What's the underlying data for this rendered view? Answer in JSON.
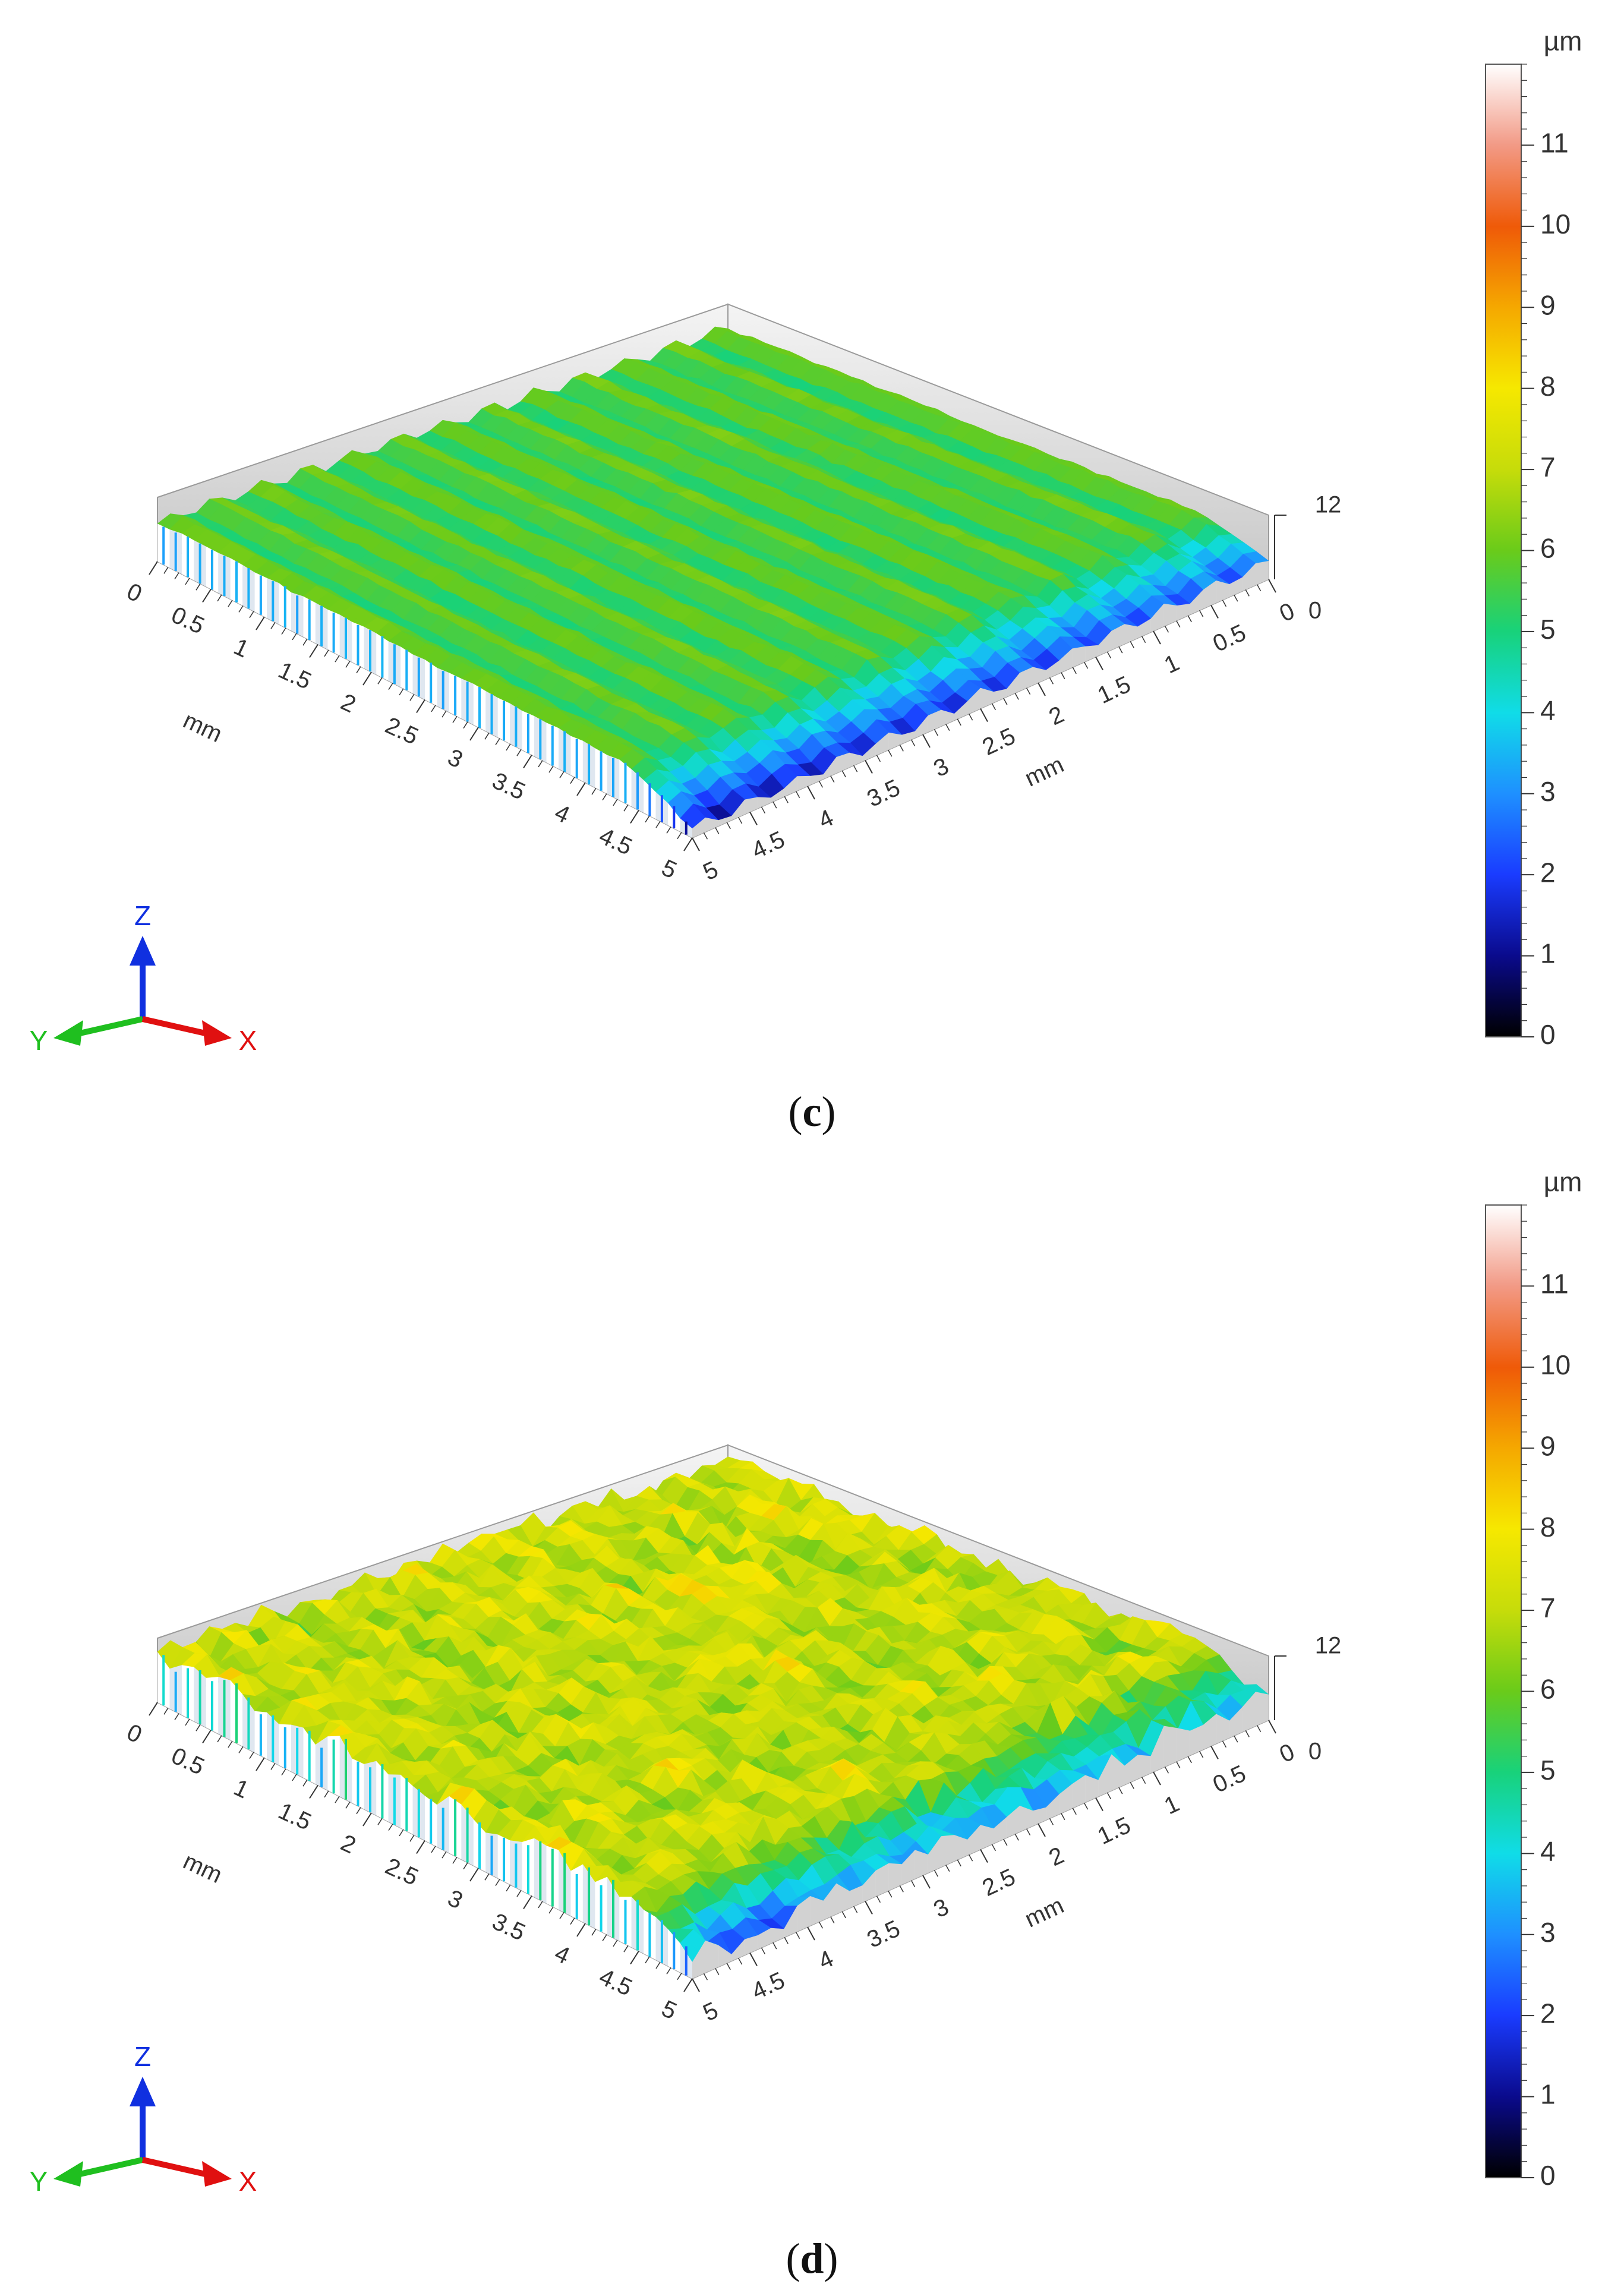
{
  "figure": {
    "panels": [
      {
        "id": "c",
        "caption_open": "(",
        "caption_letter": "c",
        "caption_close": ")"
      },
      {
        "id": "d",
        "caption_open": "(",
        "caption_letter": "d",
        "caption_close": ")"
      }
    ]
  },
  "colors": {
    "scale": [
      "#000000",
      "#0a0a8c",
      "#1a3cff",
      "#1e90ff",
      "#10dce8",
      "#18d27a",
      "#6acb1a",
      "#c6dc0a",
      "#f6e800",
      "#f5a800",
      "#ef5a08",
      "#f29a86",
      "#ffffff"
    ],
    "axis_x": "#e01010",
    "axis_y": "#1fbf1f",
    "axis_z": "#1030e0"
  },
  "chart_data": [
    {
      "type": "heatmap",
      "subtype": "3d-surface",
      "panel": "c",
      "title": "",
      "x_axis": {
        "label": "mm",
        "ticks": [
          "0",
          "0.5",
          "1",
          "1.5",
          "2",
          "2.5",
          "3",
          "3.5",
          "4",
          "4.5",
          "5"
        ],
        "range": [
          0,
          5
        ]
      },
      "y_axis": {
        "label": "mm",
        "ticks": [
          "0",
          "0.5",
          "1",
          "1.5",
          "2",
          "2.5",
          "3",
          "3.5",
          "4",
          "4.5",
          "5"
        ],
        "range": [
          0,
          5
        ]
      },
      "z_axis": {
        "ticks": [
          "0",
          "12"
        ],
        "range": [
          0,
          12
        ]
      },
      "colorbar": {
        "unit": "µm",
        "ticks": [
          "0",
          "1",
          "2",
          "3",
          "4",
          "5",
          "6",
          "7",
          "8",
          "9",
          "10",
          "11"
        ],
        "range": [
          0,
          12
        ]
      },
      "surface": {
        "mean_height": 5.6,
        "ridge_amplitude": 0.8,
        "ridge_period_mm": 0.1,
        "roughness": 0.2,
        "edge_valley_min": 1.2
      },
      "triad": {
        "z": "Z",
        "y": "Y",
        "x": "X"
      }
    },
    {
      "type": "heatmap",
      "subtype": "3d-surface",
      "panel": "d",
      "title": "",
      "x_axis": {
        "label": "mm",
        "ticks": [
          "0",
          "0.5",
          "1",
          "1.5",
          "2",
          "2.5",
          "3",
          "3.5",
          "4",
          "4.5",
          "5"
        ],
        "range": [
          0,
          5
        ]
      },
      "y_axis": {
        "label": "mm",
        "ticks": [
          "0",
          "0.5",
          "1",
          "1.5",
          "2",
          "2.5",
          "3",
          "3.5",
          "4",
          "4.5",
          "5"
        ],
        "range": [
          0,
          5
        ]
      },
      "z_axis": {
        "ticks": [
          "0",
          "12"
        ],
        "range": [
          0,
          12
        ]
      },
      "colorbar": {
        "unit": "µm",
        "ticks": [
          "0",
          "1",
          "2",
          "3",
          "4",
          "5",
          "6",
          "7",
          "8",
          "9",
          "10",
          "11"
        ],
        "range": [
          0,
          12
        ]
      },
      "surface": {
        "mean_height": 7.0,
        "ridge_amplitude": 0.6,
        "ridge_period_mm": 0.1,
        "roughness": 1.2,
        "edge_valley_min": 2.5
      },
      "triad": {
        "z": "Z",
        "y": "Y",
        "x": "X"
      }
    }
  ]
}
